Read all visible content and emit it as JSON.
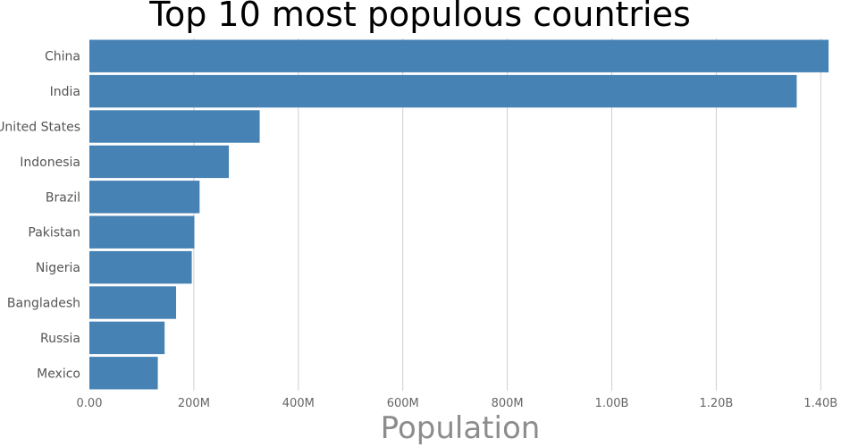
{
  "chart_data": {
    "type": "bar",
    "orientation": "horizontal",
    "title": "Top 10 most populous countries",
    "xlabel": "Population",
    "ylabel": "",
    "categories": [
      "China",
      "India",
      "United States",
      "Indonesia",
      "Brazil",
      "Pakistan",
      "Nigeria",
      "Bangladesh",
      "Russia",
      "Mexico"
    ],
    "values": [
      1415000000,
      1354000000,
      326000000,
      267000000,
      211000000,
      201000000,
      196000000,
      166000000,
      144000000,
      131000000
    ],
    "xlim": [
      0,
      1420000000
    ],
    "xticks": [
      0,
      200000000,
      400000000,
      600000000,
      800000000,
      1000000000,
      1200000000,
      1400000000
    ],
    "xtick_labels": [
      "0.00",
      "200M",
      "400M",
      "600M",
      "800M",
      "1.00B",
      "1.20B",
      "1.40B"
    ],
    "grid": "vertical",
    "legend": "none",
    "colors": {
      "bar": "#4682b4"
    }
  }
}
